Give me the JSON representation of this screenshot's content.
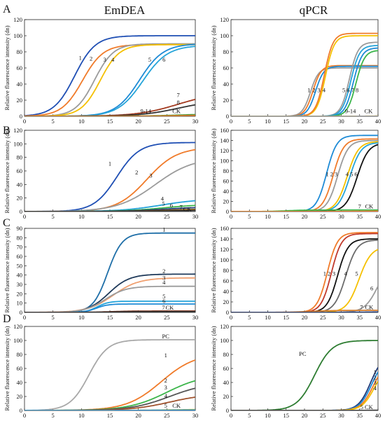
{
  "figure": {
    "column_titles": [
      "EmDEA",
      "qPCR"
    ],
    "row_letters": [
      "A",
      "B",
      "C",
      "D"
    ]
  },
  "chart_data": [
    {
      "id": "A-emdea",
      "type": "line",
      "ylabel": "Relative fluorescence intensity (dn)",
      "xlim": [
        0,
        30
      ],
      "ylim": [
        0,
        120
      ],
      "xticks": [
        0,
        5,
        10,
        15,
        20,
        25,
        30
      ],
      "yticks": [
        0,
        20,
        40,
        60,
        80,
        100,
        120
      ],
      "series": [
        {
          "label": "1",
          "color": "#1f4fb4",
          "plateau": 100,
          "midpoint": 8.8,
          "slope": 0.55
        },
        {
          "label": "2",
          "color": "#f07b2a",
          "plateau": 89,
          "midpoint": 10.2,
          "slope": 0.55
        },
        {
          "label": "3",
          "color": "#9b9b9b",
          "plateau": 90,
          "midpoint": 12.3,
          "slope": 0.6
        },
        {
          "label": "4",
          "color": "#f5c000",
          "plateau": 89,
          "midpoint": 13.3,
          "slope": 0.6
        },
        {
          "label": "5",
          "color": "#1e8bd6",
          "plateau": 90,
          "midpoint": 20.2,
          "slope": 0.48
        },
        {
          "label": "6",
          "color": "#25a4d9",
          "plateau": 88,
          "midpoint": 20.8,
          "slope": 0.46
        },
        {
          "label": "7",
          "color": "#a33a1f",
          "plateau": 30,
          "midpoint": 27.0,
          "slope": 0.28
        },
        {
          "label": "8",
          "color": "#333333",
          "plateau": 20,
          "midpoint": 27.0,
          "slope": 0.3
        },
        {
          "label": "9-14",
          "color": "#4a9a3c",
          "plateau": 3,
          "midpoint": 27.0,
          "slope": 0.3
        },
        {
          "label": "CK",
          "color": "#d27b2a",
          "plateau": 1.5,
          "midpoint": 27.0,
          "slope": 0.3
        }
      ],
      "annotations": [
        {
          "text": "1",
          "x": 9.8,
          "y": 70
        },
        {
          "text": "2",
          "x": 11.7,
          "y": 69
        },
        {
          "text": "3",
          "x": 14.1,
          "y": 68
        },
        {
          "text": "4",
          "x": 15.5,
          "y": 68
        },
        {
          "text": "5",
          "x": 22.0,
          "y": 68
        },
        {
          "text": "6",
          "x": 24.5,
          "y": 68
        },
        {
          "text": "7",
          "x": 27.0,
          "y": 24
        },
        {
          "text": "8",
          "x": 27.0,
          "y": 15
        },
        {
          "text": "9-14",
          "x": 21.3,
          "y": 4
        },
        {
          "text": "CK",
          "x": 26.7,
          "y": 4
        }
      ]
    },
    {
      "id": "A-qpcr",
      "type": "line",
      "ylabel": "Relative fluorescence intensity (dn)",
      "xlim": [
        0,
        40
      ],
      "ylim": [
        0,
        120
      ],
      "xticks": [
        0,
        5,
        10,
        15,
        20,
        25,
        30,
        35,
        40
      ],
      "yticks": [
        0,
        20,
        40,
        60,
        80,
        100,
        120
      ],
      "series": [
        {
          "label": "1",
          "color": "#9b9b9b",
          "plateau": 60,
          "midpoint": 21.6,
          "slope": 0.9
        },
        {
          "label": "2",
          "color": "#f07b2a",
          "plateau": 63,
          "midpoint": 22.3,
          "slope": 0.9
        },
        {
          "label": "3",
          "color": "#1e8bd6",
          "plateau": 62,
          "midpoint": 23.0,
          "slope": 0.9
        },
        {
          "label": "4",
          "color": "#f5c000",
          "plateau": 100,
          "midpoint": 25.7,
          "slope": 0.85
        },
        {
          "label": "4b",
          "color": "#f07b2a",
          "plateau": 103,
          "midpoint": 25.4,
          "slope": 0.85
        },
        {
          "label": "5",
          "color": "#9b9b9b",
          "plateau": 92,
          "midpoint": 32.2,
          "slope": 0.85
        },
        {
          "label": "6",
          "color": "#25a4d9",
          "plateau": 88,
          "midpoint": 32.6,
          "slope": 0.85
        },
        {
          "label": "7",
          "color": "#1e8bd6",
          "plateau": 85,
          "midpoint": 33.3,
          "slope": 0.85
        },
        {
          "label": "8",
          "color": "#3bb54a",
          "plateau": 82,
          "midpoint": 34.0,
          "slope": 0.85
        },
        {
          "label": "9-14",
          "color": "#f5c000",
          "plateau": 0.5,
          "midpoint": 40,
          "slope": 0.3
        },
        {
          "label": "CK",
          "color": "#9b9b9b",
          "plateau": 0.3,
          "midpoint": 40,
          "slope": 0.3
        }
      ],
      "annotations": [
        {
          "text": "1",
          "x": 21.2,
          "y": 30
        },
        {
          "text": "2",
          "x": 22.6,
          "y": 30
        },
        {
          "text": "3",
          "x": 23.9,
          "y": 30
        },
        {
          "text": "4",
          "x": 25.3,
          "y": 30
        },
        {
          "text": "5",
          "x": 30.7,
          "y": 30
        },
        {
          "text": "6",
          "x": 31.9,
          "y": 30
        },
        {
          "text": "7",
          "x": 33.1,
          "y": 30
        },
        {
          "text": "8",
          "x": 34.3,
          "y": 30
        },
        {
          "text": "9-14",
          "x": 32.5,
          "y": 4
        },
        {
          "text": "CK",
          "x": 37.4,
          "y": 4
        }
      ]
    },
    {
      "id": "B-emdea",
      "type": "line",
      "ylabel": "Relative fluorescence intensity (dn)",
      "xlim": [
        0,
        30
      ],
      "ylim": [
        0,
        120
      ],
      "xticks": [
        0,
        5,
        10,
        15,
        20,
        25,
        30
      ],
      "yticks": [
        0,
        20,
        40,
        60,
        80,
        100,
        120
      ],
      "series": [
        {
          "label": "1",
          "color": "#1f4fb4",
          "plateau": 102,
          "midpoint": 16.2,
          "slope": 0.5
        },
        {
          "label": "2",
          "color": "#f07b2a",
          "plateau": 95,
          "midpoint": 21.5,
          "slope": 0.38
        },
        {
          "label": "3",
          "color": "#9b9b9b",
          "plateau": 80,
          "midpoint": 23.0,
          "slope": 0.3
        },
        {
          "label": "4",
          "color": "#25a4d9",
          "plateau": 19,
          "midpoint": 24.0,
          "slope": 0.28
        },
        {
          "label": "5",
          "color": "#3bb54a",
          "plateau": 11,
          "midpoint": 24.5,
          "slope": 0.28
        },
        {
          "label": "6",
          "color": "#1f3a7a",
          "plateau": 7,
          "midpoint": 24.5,
          "slope": 0.28
        },
        {
          "label": "7",
          "color": "#8a5a10",
          "plateau": 4,
          "midpoint": 25,
          "slope": 0.28
        },
        {
          "label": "CK",
          "color": "#333333",
          "plateau": 2,
          "midpoint": 25,
          "slope": 0.28
        }
      ],
      "annotations": [
        {
          "text": "1",
          "x": 15.0,
          "y": 68
        },
        {
          "text": "2",
          "x": 19.7,
          "y": 55
        },
        {
          "text": "3",
          "x": 22.2,
          "y": 50
        },
        {
          "text": "4",
          "x": 24.2,
          "y": 16
        },
        {
          "text": "5",
          "x": 24.4,
          "y": 9
        },
        {
          "text": "6",
          "x": 25.8,
          "y": 6
        },
        {
          "text": "7",
          "x": 27.5,
          "y": 3.8
        },
        {
          "text": "CK",
          "x": 28.6,
          "y": 0.5
        }
      ]
    },
    {
      "id": "B-qpcr",
      "type": "line",
      "ylabel": "Relative fluorescence intensity (dn)",
      "xlim": [
        0,
        40
      ],
      "ylim": [
        0,
        160
      ],
      "xticks": [
        0,
        5,
        10,
        15,
        20,
        25,
        30,
        35,
        40
      ],
      "yticks": [
        0,
        20,
        40,
        60,
        80,
        100,
        120,
        140,
        160
      ],
      "series": [
        {
          "label": "1",
          "color": "#1e8bd6",
          "plateau": 150,
          "midpoint": 26.0,
          "slope": 0.72
        },
        {
          "label": "2",
          "color": "#f07b2a",
          "plateau": 143,
          "midpoint": 27.8,
          "slope": 0.7
        },
        {
          "label": "3",
          "color": "#9b9b9b",
          "plateau": 140,
          "midpoint": 29.0,
          "slope": 0.7
        },
        {
          "label": "4",
          "color": "#f5c000",
          "plateau": 138,
          "midpoint": 31.6,
          "slope": 0.65
        },
        {
          "label": "5",
          "color": "#25a4d9",
          "plateau": 136,
          "midpoint": 32.3,
          "slope": 0.65
        },
        {
          "label": "6",
          "color": "#111111",
          "plateau": 135,
          "midpoint": 34.3,
          "slope": 0.65
        },
        {
          "label": "7",
          "color": "#3bb54a",
          "plateau": 3,
          "midpoint": 15,
          "slope": 0.4
        },
        {
          "label": "CK",
          "color": "#f07b2a",
          "plateau": 1,
          "midpoint": 35,
          "slope": 0.3
        }
      ],
      "annotations": [
        {
          "text": "1",
          "x": 26.2,
          "y": 70
        },
        {
          "text": "2",
          "x": 27.4,
          "y": 70
        },
        {
          "text": "3",
          "x": 28.6,
          "y": 70
        },
        {
          "text": "4",
          "x": 31.6,
          "y": 70
        },
        {
          "text": "5",
          "x": 32.8,
          "y": 70
        },
        {
          "text": "6",
          "x": 34.0,
          "y": 70
        },
        {
          "text": "7",
          "x": 35.0,
          "y": 6
        },
        {
          "text": "CK",
          "x": 37.6,
          "y": 6
        }
      ]
    },
    {
      "id": "C-emdea",
      "type": "line",
      "ylabel": "Relative fluorescence intensity (dn)",
      "xlim": [
        0,
        30
      ],
      "ylim": [
        0,
        90
      ],
      "xticks": [
        0,
        5,
        10,
        15,
        20,
        25,
        30
      ],
      "yticks": [
        0,
        10,
        20,
        30,
        40,
        50,
        60,
        70,
        80,
        90
      ],
      "series": [
        {
          "label": "1",
          "color": "#1f6fa8",
          "plateau": 85,
          "midpoint": 14.6,
          "slope": 0.78
        },
        {
          "label": "2",
          "color": "#1f3a5a",
          "plateau": 41,
          "midpoint": 14.8,
          "slope": 0.55
        },
        {
          "label": "3",
          "color": "#f0a070",
          "plateau": 37,
          "midpoint": 15.6,
          "slope": 0.45
        },
        {
          "label": "4",
          "color": "#9b9b9b",
          "plateau": 28,
          "midpoint": 14.2,
          "slope": 0.55
        },
        {
          "label": "5",
          "color": "#25a4d9",
          "plateau": 12,
          "midpoint": 12.8,
          "slope": 1.0
        },
        {
          "label": "6",
          "color": "#1e8bd6",
          "plateau": 9,
          "midpoint": 12.6,
          "slope": 1.0
        },
        {
          "label": "7",
          "color": "#7a2a10",
          "plateau": 1.5,
          "midpoint": 15,
          "slope": 0.5
        },
        {
          "label": "CK",
          "color": "#333333",
          "plateau": 0.8,
          "midpoint": 15,
          "slope": 0.5
        }
      ],
      "annotations": [
        {
          "text": "1",
          "x": 24.5,
          "y": 86.5
        },
        {
          "text": "2",
          "x": 24.5,
          "y": 42
        },
        {
          "text": "3",
          "x": 24.5,
          "y": 35
        },
        {
          "text": "4",
          "x": 24.5,
          "y": 30
        },
        {
          "text": "5",
          "x": 24.5,
          "y": 15
        },
        {
          "text": "6",
          "x": 24.5,
          "y": 10
        },
        {
          "text": "7",
          "x": 24.4,
          "y": 3
        },
        {
          "text": "CK",
          "x": 25.5,
          "y": 3
        }
      ]
    },
    {
      "id": "C-qpcr",
      "type": "line",
      "ylabel": "Relative fluorescence intensity (dn)",
      "xlim": [
        0,
        40
      ],
      "ylim": [
        0,
        160
      ],
      "xticks": [
        0,
        5,
        10,
        15,
        20,
        25,
        30,
        35,
        40
      ],
      "yticks": [
        0,
        20,
        40,
        60,
        80,
        100,
        120,
        140,
        160
      ],
      "series": [
        {
          "label": "1",
          "color": "#f07b2a",
          "plateau": 152,
          "midpoint": 26.2,
          "slope": 0.72
        },
        {
          "label": "2",
          "color": "#c0392b",
          "plateau": 150,
          "midpoint": 27.3,
          "slope": 0.72
        },
        {
          "label": "3",
          "color": "#111111",
          "plateau": 140,
          "midpoint": 29.0,
          "slope": 0.7
        },
        {
          "label": "4",
          "color": "#6b6b6b",
          "plateau": 138,
          "midpoint": 31.2,
          "slope": 0.65
        },
        {
          "label": "5",
          "color": "#f5c000",
          "plateau": 125,
          "midpoint": 34.8,
          "slope": 0.6
        },
        {
          "label": "6",
          "color": "#9b9b9b",
          "plateau": 100,
          "midpoint": 40.0,
          "slope": 0.55
        },
        {
          "label": "7",
          "color": "#d27b2a",
          "plateau": 4,
          "midpoint": 22,
          "slope": 0.3
        },
        {
          "label": "CK",
          "color": "#1f3a7a",
          "plateau": 1,
          "midpoint": 35,
          "slope": 0.3
        }
      ],
      "annotations": [
        {
          "text": "1",
          "x": 25.5,
          "y": 70
        },
        {
          "text": "2",
          "x": 26.7,
          "y": 70
        },
        {
          "text": "3",
          "x": 28.0,
          "y": 70
        },
        {
          "text": "4",
          "x": 31.2,
          "y": 70
        },
        {
          "text": "5",
          "x": 34.2,
          "y": 70
        },
        {
          "text": "6",
          "x": 38.3,
          "y": 42
        },
        {
          "text": "7",
          "x": 35.5,
          "y": 6
        },
        {
          "text": "CK",
          "x": 37.6,
          "y": 6
        }
      ]
    },
    {
      "id": "D-emdea",
      "type": "line",
      "ylabel": "Relative fluorescence intensity (dn)",
      "xlim": [
        0,
        30
      ],
      "ylim": [
        0,
        120
      ],
      "xticks": [
        0,
        5,
        10,
        15,
        20,
        25,
        30
      ],
      "yticks": [
        0,
        20,
        40,
        60,
        80,
        100,
        120
      ],
      "series": [
        {
          "label": "PC",
          "color": "#a8a8a8",
          "plateau": 101,
          "midpoint": 11.3,
          "slope": 0.6
        },
        {
          "label": "1",
          "color": "#f07b2a",
          "plateau": 82,
          "midpoint": 24.0,
          "slope": 0.33
        },
        {
          "label": "2",
          "color": "#3bb54a",
          "plateau": 52,
          "midpoint": 25.0,
          "slope": 0.3
        },
        {
          "label": "3",
          "color": "#555555",
          "plateau": 40,
          "midpoint": 25.5,
          "slope": 0.3
        },
        {
          "label": "4",
          "color": "#a0522d",
          "plateau": 24,
          "midpoint": 25.5,
          "slope": 0.3
        },
        {
          "label": "5",
          "color": "#f5c000",
          "plateau": 1.5,
          "midpoint": 25,
          "slope": 0.3
        },
        {
          "label": "CK",
          "color": "#1e8bd6",
          "plateau": 0.8,
          "midpoint": 25,
          "slope": 0.3
        }
      ],
      "annotations": [
        {
          "text": "PC",
          "x": 24.8,
          "y": 103
        },
        {
          "text": "1",
          "x": 24.8,
          "y": 76
        },
        {
          "text": "2",
          "x": 24.8,
          "y": 40
        },
        {
          "text": "3",
          "x": 24.8,
          "y": 30
        },
        {
          "text": "4",
          "x": 24.8,
          "y": 18
        },
        {
          "text": "5",
          "x": 24.8,
          "y": 4
        },
        {
          "text": "CK",
          "x": 26.7,
          "y": 4
        }
      ]
    },
    {
      "id": "D-qpcr",
      "type": "line",
      "ylabel": "Relative fluorescence intensity (dn)",
      "xlim": [
        0,
        40
      ],
      "ylim": [
        0,
        120
      ],
      "xticks": [
        0,
        5,
        10,
        15,
        20,
        25,
        30,
        35,
        40
      ],
      "yticks": [
        0,
        20,
        40,
        60,
        80,
        100,
        120
      ],
      "series": [
        {
          "label": "PC",
          "color": "#2e7d32",
          "plateau": 100,
          "midpoint": 22.7,
          "slope": 0.42
        },
        {
          "label": "1",
          "color": "#1f3a7a",
          "plateau": 80,
          "midpoint": 38.0,
          "slope": 0.6
        },
        {
          "label": "2",
          "color": "#1e8bd6",
          "plateau": 75,
          "midpoint": 38.3,
          "slope": 0.6
        },
        {
          "label": "3",
          "color": "#f07b2a",
          "plateau": 70,
          "midpoint": 38.7,
          "slope": 0.6
        },
        {
          "label": "4",
          "color": "#f5c000",
          "plateau": 65,
          "midpoint": 39.0,
          "slope": 0.6
        },
        {
          "label": "5",
          "color": "#9b9b9b",
          "plateau": 0.6,
          "midpoint": 38,
          "slope": 0.3
        },
        {
          "label": "CK",
          "color": "#333333",
          "plateau": 0.3,
          "midpoint": 38,
          "slope": 0.3
        }
      ],
      "annotations": [
        {
          "text": "PC",
          "x": 19.5,
          "y": 78
        },
        {
          "text": "1",
          "x": 39.2,
          "y": 52
        },
        {
          "text": "2",
          "x": 39.2,
          "y": 44
        },
        {
          "text": "3",
          "x": 39.2,
          "y": 37
        },
        {
          "text": "4",
          "x": 39.2,
          "y": 29
        },
        {
          "text": "5",
          "x": 35.6,
          "y": 2
        },
        {
          "text": "CK",
          "x": 37.5,
          "y": 2
        }
      ]
    }
  ]
}
